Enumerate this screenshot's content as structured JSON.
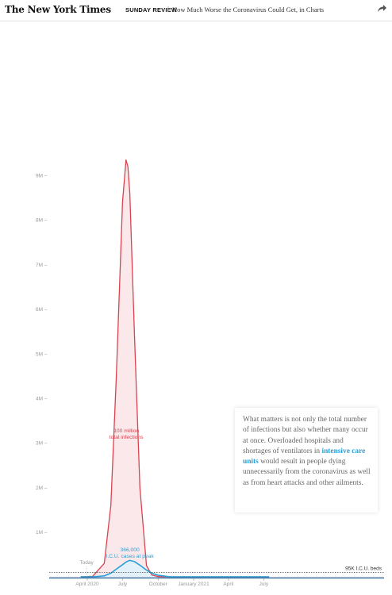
{
  "header": {
    "logo": "The New York Times",
    "section": "SUNDAY REVIEW",
    "separator": "|",
    "headline": "How Much Worse the Coronavirus Could Get, in Charts",
    "share_icon": "share-arrow-icon"
  },
  "note": {
    "text_before": "What matters is not only the total number of infections but also whether many occur at once. Overloaded hospitals and shortages of ventilators in ",
    "highlight": "intensive care units",
    "text_after": " would result in people dying unnecessarily from the coronavirus as well as from heart attacks and other ailments.",
    "highlight_color": "#2b9fd8"
  },
  "chart_data": {
    "type": "area",
    "title": "",
    "xlabel": "",
    "ylabel": "",
    "y_ticks": [
      "1M",
      "2M",
      "3M",
      "4M",
      "5M",
      "6M",
      "7M",
      "8M",
      "9M"
    ],
    "ylim": [
      0,
      9400000
    ],
    "x_ticks": [
      "April 2020",
      "July",
      "October",
      "January 2021",
      "April",
      "July"
    ],
    "x": [
      "2020-03-15",
      "2020-04-15",
      "2020-05-15",
      "2020-06-01",
      "2020-06-15",
      "2020-07-01",
      "2020-07-10",
      "2020-07-15",
      "2020-07-20",
      "2020-08-01",
      "2020-08-15",
      "2020-09-01",
      "2020-09-15",
      "2020-10-01",
      "2020-11-01",
      "2021-01-01",
      "2021-04-01",
      "2021-07-15"
    ],
    "series": [
      {
        "name": "total infections",
        "color": "#d9434e",
        "fill": "#fbe8ea",
        "values": [
          0,
          10000,
          300000,
          1600000,
          4500000,
          8400000,
          9350000,
          9200000,
          8600000,
          5400000,
          2000000,
          250000,
          40000,
          5000,
          0,
          0,
          0,
          0
        ]
      },
      {
        "name": "I.C.U. cases",
        "color": "#2b9fd8",
        "fill": "#e3f1fa",
        "values": [
          0,
          0,
          20000,
          80000,
          170000,
          270000,
          330000,
          350000,
          366000,
          340000,
          260000,
          150000,
          80000,
          35000,
          0,
          0,
          0,
          0
        ]
      }
    ],
    "annotations": [
      {
        "label_line1": "100 million",
        "label_line2": "total infections",
        "color": "#d9434e"
      },
      {
        "label_line1": "366,000",
        "label_line2": "I.C.U. cases at peak",
        "color": "#2b9fd8"
      },
      {
        "label": "Today",
        "x": "2020-03-30",
        "color": "#999999"
      },
      {
        "label": "95K I.C.U. beds",
        "y": 95000,
        "color": "#333333"
      }
    ],
    "grid": false,
    "legend": "none"
  }
}
